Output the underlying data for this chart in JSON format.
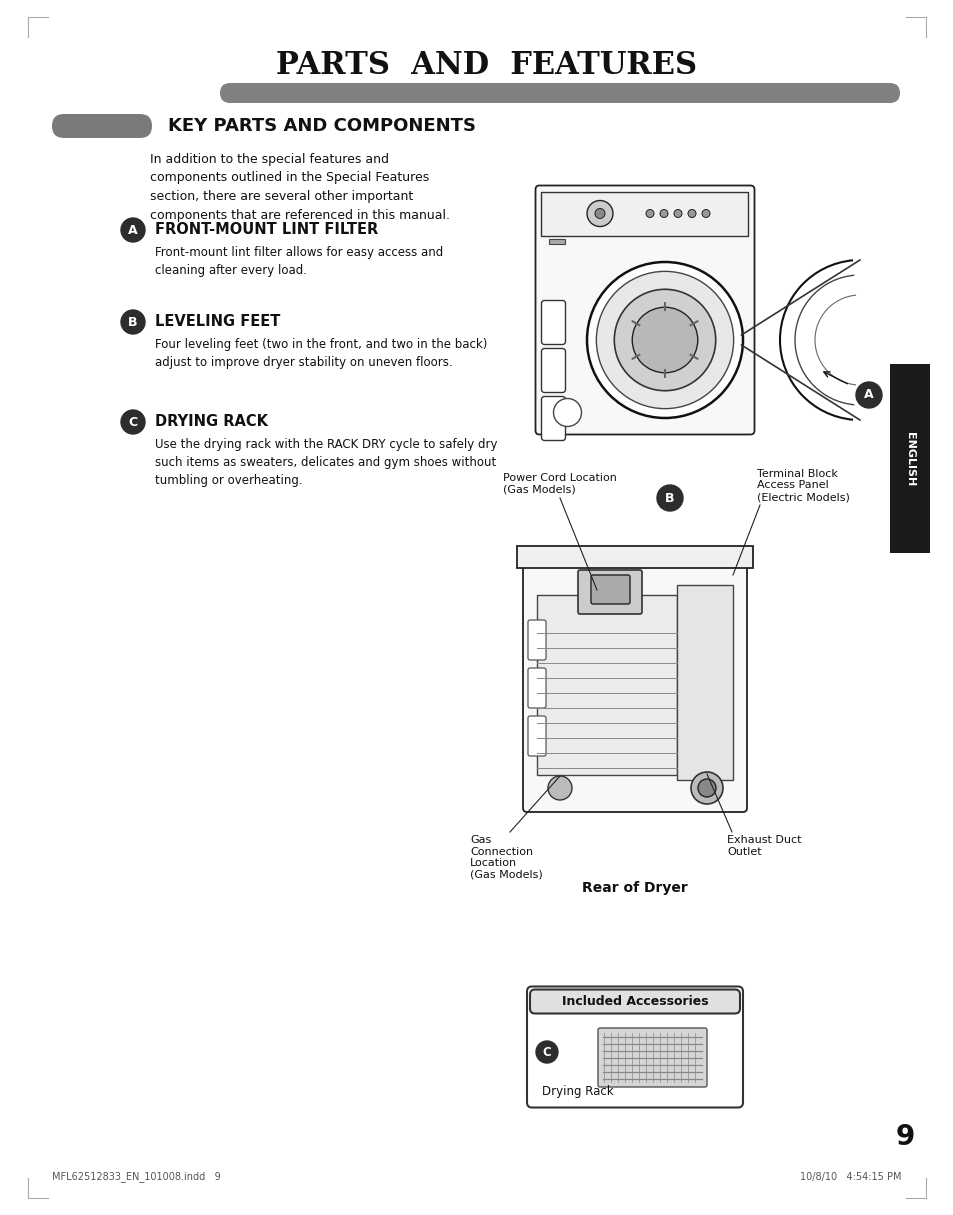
{
  "page_title": "PARTS  AND  FEATURES",
  "section_title": "KEY PARTS AND COMPONENTS",
  "intro_text": "In addition to the special features and\ncomponents outlined in the Special Features\nsection, there are several other important\ncomponents that are referenced in this manual.",
  "items": [
    {
      "label": "A",
      "title": "FRONT-MOUNT LINT FILTER",
      "body": "Front-mount lint filter allows for easy access and\ncleaning after every load."
    },
    {
      "label": "B",
      "title": "LEVELING FEET",
      "body": "Four leveling feet (two in the front, and two in the back)\nadjust to improve dryer stability on uneven floors."
    },
    {
      "label": "C",
      "title": "DRYING RACK",
      "body": "Use the drying rack with the RACK DRY cycle to safely dry\nsuch items as sweaters, delicates and gym shoes without\ntumbling or overheating."
    }
  ],
  "rear_label": "Rear of Dryer",
  "included_accessories_label": "Included Accessories",
  "drying_rack_label": "Drying Rack",
  "bg_color": "#ffffff",
  "title_bar_color": "#808080",
  "section_bar_color": "#7a7a7a",
  "label_circle_color": "#2d2d2d",
  "page_number": "9",
  "footer_left": "MFL62512833_EN_101008.indd   9",
  "footer_right": "10/8/10   4:54:15 PM",
  "sidebar_text": "ENGLISH",
  "sidebar_bg": "#1a1a1a"
}
